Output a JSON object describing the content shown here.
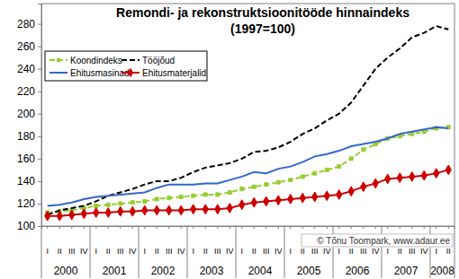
{
  "chart_data": {
    "type": "line",
    "title": "Remondi- ja rekonstruktsioonitööde hinnaindeks",
    "subtitle": "(1997=100)",
    "annotation": "© Tõnu Toompark, www.adaur.ee",
    "categories": [
      "I",
      "II",
      "III",
      "IV",
      "I",
      "II",
      "III",
      "IV",
      "I",
      "II",
      "III",
      "IV",
      "I",
      "II",
      "III",
      "IV",
      "I",
      "II",
      "III",
      "IV",
      "I",
      "II",
      "III",
      "IV",
      "I",
      "II",
      "III",
      "IV",
      "I",
      "II",
      "III",
      "IV",
      "I",
      "II"
    ],
    "years": [
      "2000",
      "2000",
      "2000",
      "2000",
      "2001",
      "2001",
      "2001",
      "2001",
      "2002",
      "2002",
      "2002",
      "2002",
      "2003",
      "2003",
      "2003",
      "2003",
      "2004",
      "2004",
      "2004",
      "2004",
      "2005",
      "2005",
      "2005",
      "2005",
      "2006",
      "2006",
      "2006",
      "2006",
      "2007",
      "2007",
      "2007",
      "2007",
      "2008",
      "2008"
    ],
    "ylim": [
      100,
      298
    ],
    "yticks": [
      100,
      120,
      140,
      160,
      180,
      200,
      220,
      240,
      260,
      280
    ],
    "grid": false,
    "legend": "top-left",
    "series": [
      {
        "name": "Koondindeks",
        "color": "#99cc33",
        "line_style": "dashed",
        "marker": "square",
        "values": [
          112,
          113,
          114,
          116,
          118,
          119,
          120,
          121,
          122,
          124,
          125,
          126,
          127,
          128,
          128,
          130,
          133,
          135,
          137,
          139,
          141,
          144,
          147,
          150,
          153,
          160,
          168,
          173,
          178,
          180,
          182,
          184,
          187,
          188
        ]
      },
      {
        "name": "Tööjõud",
        "color": "#000000",
        "line_style": "dashed",
        "marker": "none",
        "values": [
          110,
          114,
          116,
          118,
          122,
          127,
          130,
          133,
          137,
          140,
          140,
          143,
          148,
          152,
          154,
          156,
          160,
          166,
          167,
          170,
          175,
          182,
          187,
          194,
          200,
          210,
          225,
          240,
          250,
          258,
          268,
          272,
          278,
          275
        ]
      },
      {
        "name": "Ehitusmasinad",
        "color": "#3366cc",
        "line_style": "solid",
        "marker": "none",
        "values": [
          118,
          119,
          121,
          124,
          126,
          127,
          128,
          129,
          130,
          134,
          137,
          137,
          137,
          138,
          138,
          141,
          144,
          148,
          147,
          151,
          153,
          157,
          162,
          164,
          167,
          171,
          173,
          175,
          178,
          182,
          184,
          186,
          188,
          187
        ]
      },
      {
        "name": "Ehitusmaterjalid",
        "color": "#cc0000",
        "line_style": "solid",
        "marker": "diamond",
        "values": [
          109,
          109,
          110,
          111,
          112,
          112,
          113,
          113,
          114,
          114,
          114,
          114,
          115,
          115,
          115,
          116,
          119,
          121,
          122,
          123,
          124,
          125,
          126,
          127,
          128,
          131,
          135,
          138,
          142,
          143,
          144,
          145,
          147,
          150
        ]
      }
    ]
  }
}
